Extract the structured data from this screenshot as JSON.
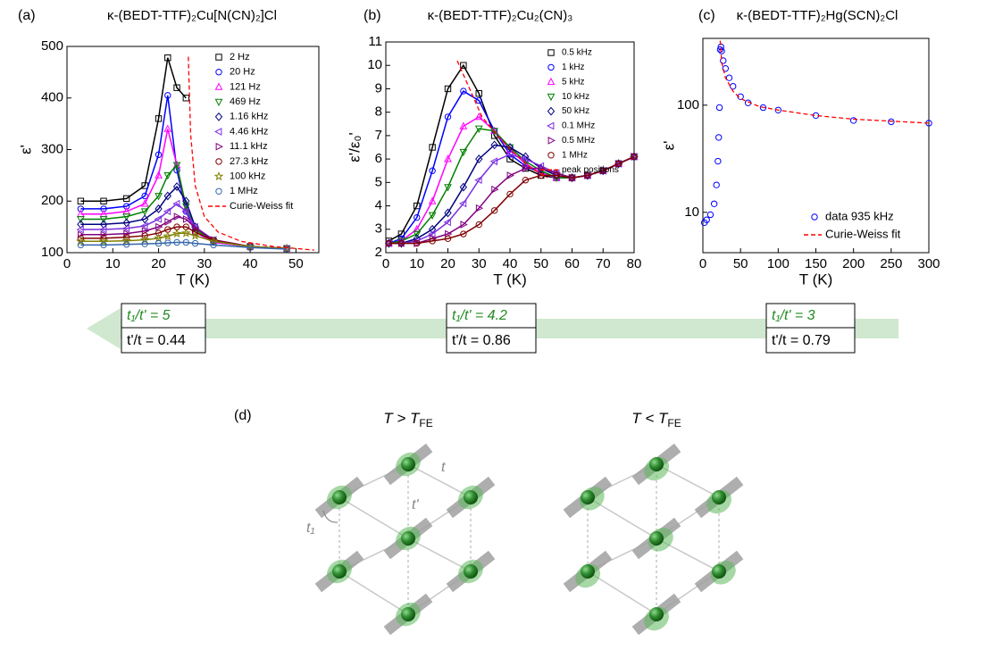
{
  "chart_data": [
    {
      "type": "line",
      "panel_label": "(a)",
      "title": "κ-(BEDT-TTF)₂Cu[N(CN)₂]Cl",
      "x_label": "T (K)",
      "y_label": "ε'",
      "xlim": [
        0,
        55
      ],
      "xticks": [
        0,
        10,
        20,
        30,
        40,
        50
      ],
      "ylim": [
        100,
        500
      ],
      "yticks": [
        100,
        200,
        300,
        400,
        500
      ],
      "legend": "upper right",
      "x": [
        3,
        8,
        13,
        17,
        20,
        22,
        24,
        26,
        28,
        32,
        40,
        48
      ],
      "series": [
        {
          "name": "2 Hz",
          "color": "#000000",
          "marker": "square",
          "line": true,
          "values": [
            200,
            200,
            205,
            230,
            360,
            478,
            420,
            400,
            null,
            null,
            null,
            null
          ]
        },
        {
          "name": "20 Hz",
          "color": "#0000ff",
          "marker": "circle",
          "line": true,
          "values": [
            185,
            185,
            190,
            210,
            290,
            405,
            260,
            180,
            140,
            120,
            112,
            108
          ]
        },
        {
          "name": "121 Hz",
          "color": "#ff00ff",
          "marker": "triangle-up",
          "line": true,
          "values": [
            175,
            175,
            180,
            195,
            250,
            340,
            270,
            185,
            140,
            120,
            112,
            108
          ]
        },
        {
          "name": "469 Hz",
          "color": "#008000",
          "marker": "triangle-down",
          "line": true,
          "values": [
            165,
            165,
            170,
            180,
            210,
            250,
            270,
            190,
            145,
            122,
            112,
            108
          ]
        },
        {
          "name": "1.16 kHz",
          "color": "#000080",
          "marker": "diamond",
          "line": true,
          "values": [
            155,
            155,
            158,
            165,
            185,
            210,
            228,
            200,
            150,
            123,
            112,
            108
          ]
        },
        {
          "name": "4.46 kHz",
          "color": "#7b2fe0",
          "marker": "triangle-left",
          "line": true,
          "values": [
            145,
            145,
            147,
            152,
            165,
            180,
            195,
            180,
            150,
            125,
            112,
            108
          ]
        },
        {
          "name": "11.1 kHz",
          "color": "#800080",
          "marker": "triangle-right",
          "line": true,
          "values": [
            135,
            135,
            137,
            142,
            150,
            160,
            170,
            165,
            148,
            125,
            112,
            108
          ]
        },
        {
          "name": "27.3 kHz",
          "color": "#800000",
          "marker": "circle",
          "line": true,
          "values": [
            128,
            128,
            130,
            133,
            138,
            145,
            150,
            150,
            140,
            124,
            112,
            108
          ]
        },
        {
          "name": "100 kHz",
          "color": "#808000",
          "marker": "star",
          "line": true,
          "values": [
            122,
            122,
            123,
            125,
            128,
            132,
            137,
            138,
            133,
            122,
            112,
            108
          ]
        },
        {
          "name": "1 MHz",
          "color": "#3366aa",
          "marker": "circle",
          "line": true,
          "values": [
            115,
            115,
            116,
            117,
            118,
            119,
            120,
            120,
            118,
            115,
            110,
            107
          ]
        },
        {
          "name": "Curie-Weiss fit",
          "color": "#ff0000",
          "marker": "none",
          "line": true,
          "dashed": true,
          "x": [
            26.5,
            27,
            28,
            30,
            33,
            38,
            45,
            54
          ],
          "values": [
            480,
            330,
            230,
            170,
            140,
            122,
            112,
            105
          ]
        }
      ]
    },
    {
      "type": "line",
      "panel_label": "(b)",
      "title": "κ-(BEDT-TTF)₂Cu₂(CN)₃",
      "x_label": "T (K)",
      "y_label": "ε'/ε₀'",
      "xlim": [
        0,
        80
      ],
      "xticks": [
        0,
        10,
        20,
        30,
        40,
        50,
        60,
        70,
        80
      ],
      "ylim": [
        2,
        11
      ],
      "yticks": [
        2,
        3,
        4,
        5,
        6,
        7,
        8,
        9,
        10,
        11
      ],
      "legend": "upper right",
      "x": [
        1,
        5,
        10,
        15,
        20,
        25,
        30,
        35,
        40,
        45,
        50,
        55,
        60,
        65,
        70,
        75,
        80
      ],
      "series": [
        {
          "name": "0.5 kHz",
          "color": "#000000",
          "marker": "square",
          "line": true,
          "values": [
            2.5,
            2.8,
            4.0,
            6.5,
            9.0,
            10.0,
            8.8,
            7.0,
            6.0,
            5.6,
            5.3,
            5.2,
            5.2,
            5.3,
            5.5,
            5.8,
            6.1
          ]
        },
        {
          "name": "1 kHz",
          "color": "#0000ff",
          "marker": "circle",
          "line": true,
          "values": [
            2.4,
            2.6,
            3.5,
            5.5,
            7.8,
            8.9,
            8.5,
            7.2,
            6.2,
            5.7,
            5.4,
            5.2,
            5.2,
            5.3,
            5.5,
            5.8,
            6.1
          ]
        },
        {
          "name": "5 kHz",
          "color": "#ff00ff",
          "marker": "triangle-up",
          "line": true,
          "values": [
            2.4,
            2.5,
            3.0,
            4.2,
            6.0,
            7.4,
            7.8,
            7.2,
            6.4,
            5.8,
            5.4,
            5.2,
            5.2,
            5.3,
            5.5,
            5.8,
            6.1
          ]
        },
        {
          "name": "10 kHz",
          "color": "#008000",
          "marker": "triangle-down",
          "line": true,
          "values": [
            2.4,
            2.5,
            2.8,
            3.6,
            4.8,
            6.3,
            7.3,
            7.2,
            6.5,
            5.9,
            5.5,
            5.2,
            5.2,
            5.3,
            5.5,
            5.8,
            6.1
          ]
        },
        {
          "name": "50 kHz",
          "color": "#000080",
          "marker": "diamond",
          "line": true,
          "values": [
            2.4,
            2.4,
            2.6,
            3.0,
            3.7,
            4.8,
            6.0,
            6.6,
            6.5,
            6.1,
            5.6,
            5.3,
            5.2,
            5.3,
            5.5,
            5.8,
            6.1
          ]
        },
        {
          "name": "0.1 MHz",
          "color": "#7b2fe0",
          "marker": "triangle-left",
          "line": true,
          "values": [
            2.4,
            2.4,
            2.5,
            2.8,
            3.3,
            4.1,
            5.1,
            5.9,
            6.2,
            6.0,
            5.7,
            5.4,
            5.2,
            5.3,
            5.5,
            5.8,
            6.1
          ]
        },
        {
          "name": "0.5 MHz",
          "color": "#800080",
          "marker": "triangle-right",
          "line": true,
          "values": [
            2.4,
            2.4,
            2.4,
            2.6,
            2.8,
            3.2,
            3.9,
            4.7,
            5.3,
            5.6,
            5.6,
            5.4,
            5.2,
            5.3,
            5.5,
            5.8,
            6.1
          ]
        },
        {
          "name": "1 MHz",
          "color": "#800000",
          "marker": "circle",
          "line": true,
          "values": [
            2.4,
            2.4,
            2.4,
            2.5,
            2.6,
            2.8,
            3.2,
            3.8,
            4.5,
            5.1,
            5.3,
            5.3,
            5.2,
            5.3,
            5.5,
            5.8,
            6.1
          ]
        },
        {
          "name": "peak positions",
          "color": "#ff0000",
          "marker": "none",
          "line": true,
          "dashed": true,
          "x": [
            23,
            27,
            31,
            36,
            41,
            47,
            52
          ],
          "values": [
            10.2,
            9.0,
            7.8,
            7.0,
            6.3,
            5.6,
            5.2
          ]
        }
      ]
    },
    {
      "type": "scatter",
      "panel_label": "(c)",
      "title": "κ-(BEDT-TTF)₂Hg(SCN)₂Cl",
      "x_label": "T (K)",
      "y_label": "ε'",
      "xlim": [
        0,
        300
      ],
      "xticks": [
        0,
        50,
        100,
        150,
        200,
        250,
        300
      ],
      "ylim": [
        4.2,
        420
      ],
      "yticks": [
        10,
        100
      ],
      "log_y": true,
      "legend": "lower right",
      "series": [
        {
          "name": "data 935 kHz",
          "color": "#0000ff",
          "marker": "circle",
          "line": false,
          "x": [
            2,
            5,
            10,
            15,
            18,
            20,
            21,
            22,
            23,
            24,
            25,
            27,
            30,
            35,
            40,
            50,
            60,
            80,
            100,
            150,
            200,
            250,
            300
          ],
          "values": [
            8,
            8.5,
            9.5,
            12,
            18,
            30,
            50,
            95,
            330,
            350,
            320,
            260,
            220,
            180,
            150,
            120,
            105,
            95,
            90,
            80,
            72,
            70,
            68
          ]
        },
        {
          "name": "Curie-Weiss fit",
          "color": "#ff0000",
          "marker": "none",
          "line": true,
          "dashed": true,
          "x": [
            23,
            25,
            30,
            40,
            50,
            75,
            100,
            150,
            200,
            300
          ],
          "values": [
            400,
            250,
            180,
            135,
            115,
            97,
            90,
            80,
            74,
            68
          ]
        }
      ]
    }
  ],
  "arrow": {
    "boxes": [
      {
        "top": "t₁/t' = 5",
        "bottom": "t'/t = 0.44"
      },
      {
        "top": "t₁/t' = 4.2",
        "bottom": "t'/t = 0.86"
      },
      {
        "top": "t₁/t' = 3",
        "bottom": "t'/t = 0.79"
      }
    ]
  },
  "diagram": {
    "label": "(d)",
    "panels": [
      {
        "title": {
          "text": "T > T",
          "subscript": "FE"
        }
      },
      {
        "title": {
          "text": "T < T",
          "subscript": "FE"
        }
      }
    ],
    "bonds": {
      "t": "t",
      "t_prime": "t'",
      "t1": "t₁"
    }
  }
}
